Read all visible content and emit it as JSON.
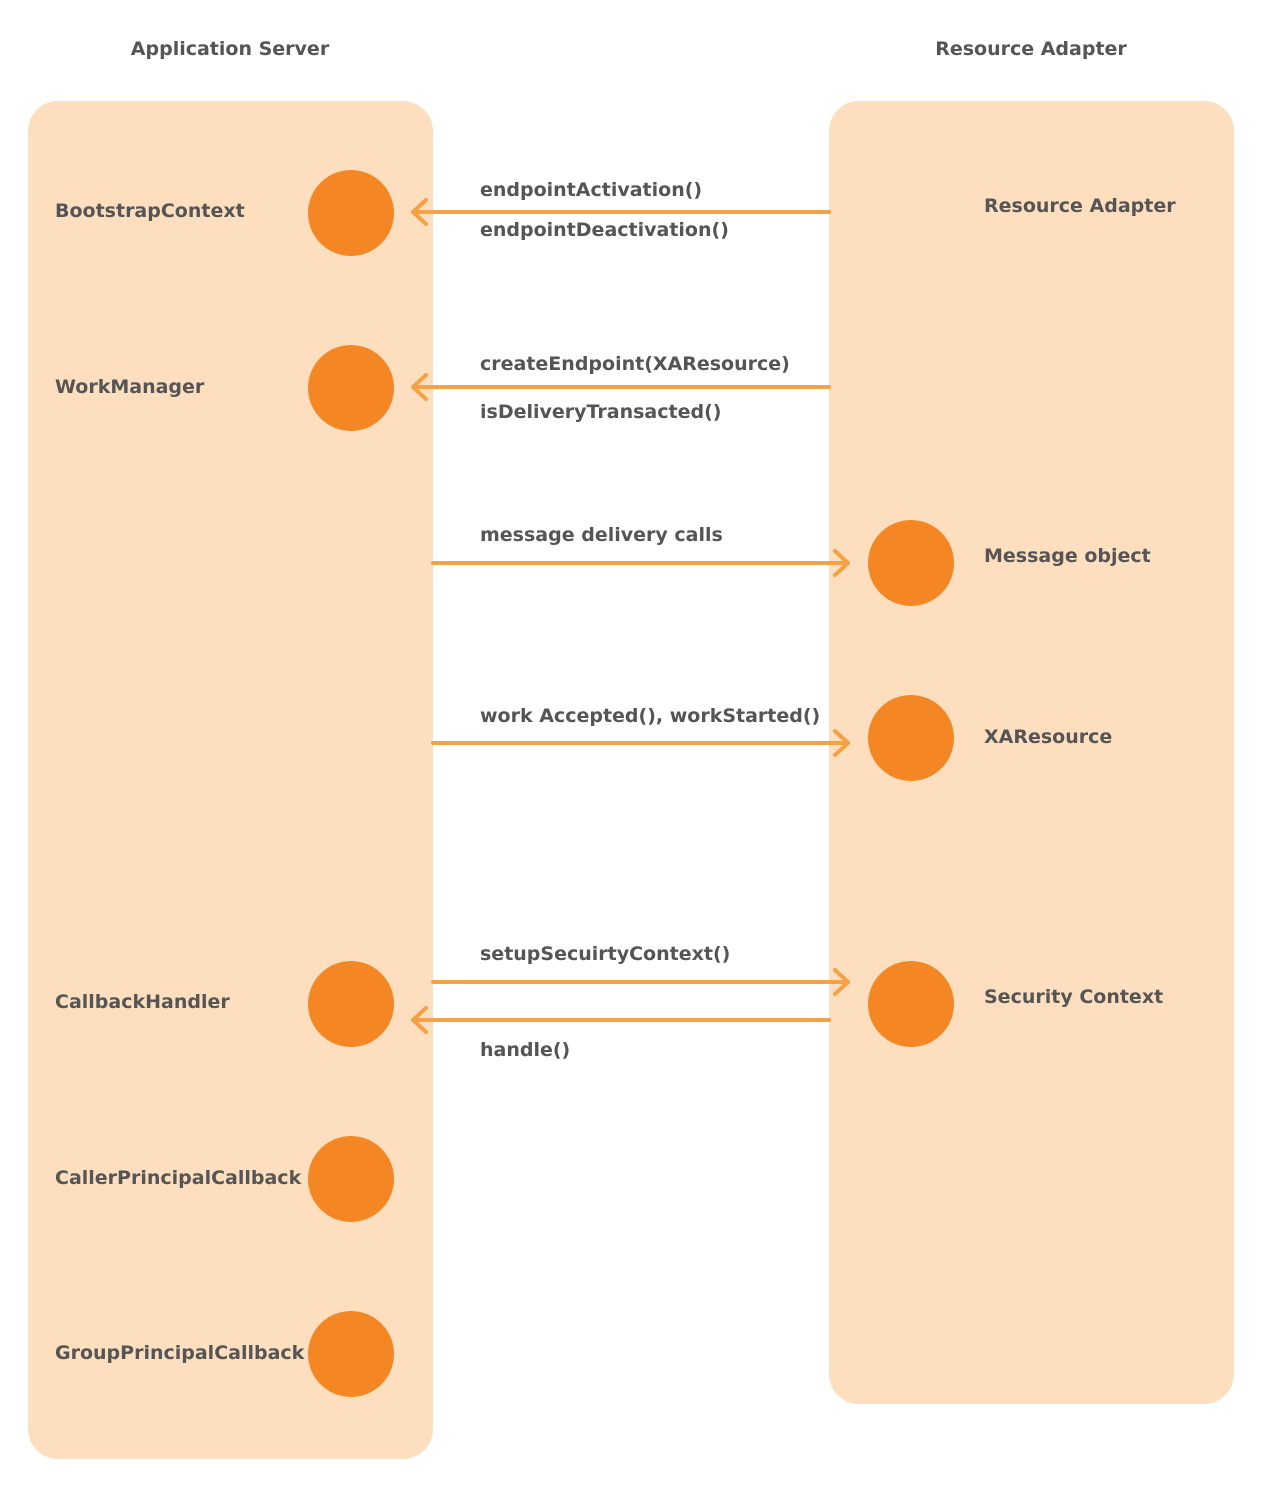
{
  "columns": {
    "left_title": "Application Server",
    "right_title": "Resource Adapter"
  },
  "app_server_components": [
    {
      "label": "BootstrapContext"
    },
    {
      "label": "WorkManager"
    },
    {
      "label": "CallbackHandler"
    },
    {
      "label": "CallerPrincipalCallback"
    },
    {
      "label": "GroupPrincipalCallback"
    }
  ],
  "resource_adapter_components": [
    {
      "label": "Resource Adapter"
    },
    {
      "label": "Message object"
    },
    {
      "label": "XAResource"
    },
    {
      "label": "Security Context"
    }
  ],
  "messages": {
    "endpoint_activation": "endpointActivation()",
    "endpoint_deactivation": "endpointDeactivation()",
    "create_endpoint": "createEndpoint(XAResource)",
    "is_delivery_transacted": "isDeliveryTransacted()",
    "message_delivery": "message delivery calls",
    "work_calls": "work Accepted(), workStarted()",
    "setup_security": "setupSecuirtyContext()",
    "handle": "handle()"
  },
  "colors": {
    "panel": "#fddfbf",
    "node": "#f48723",
    "arrow": "#f5a145",
    "text": "#555555"
  }
}
